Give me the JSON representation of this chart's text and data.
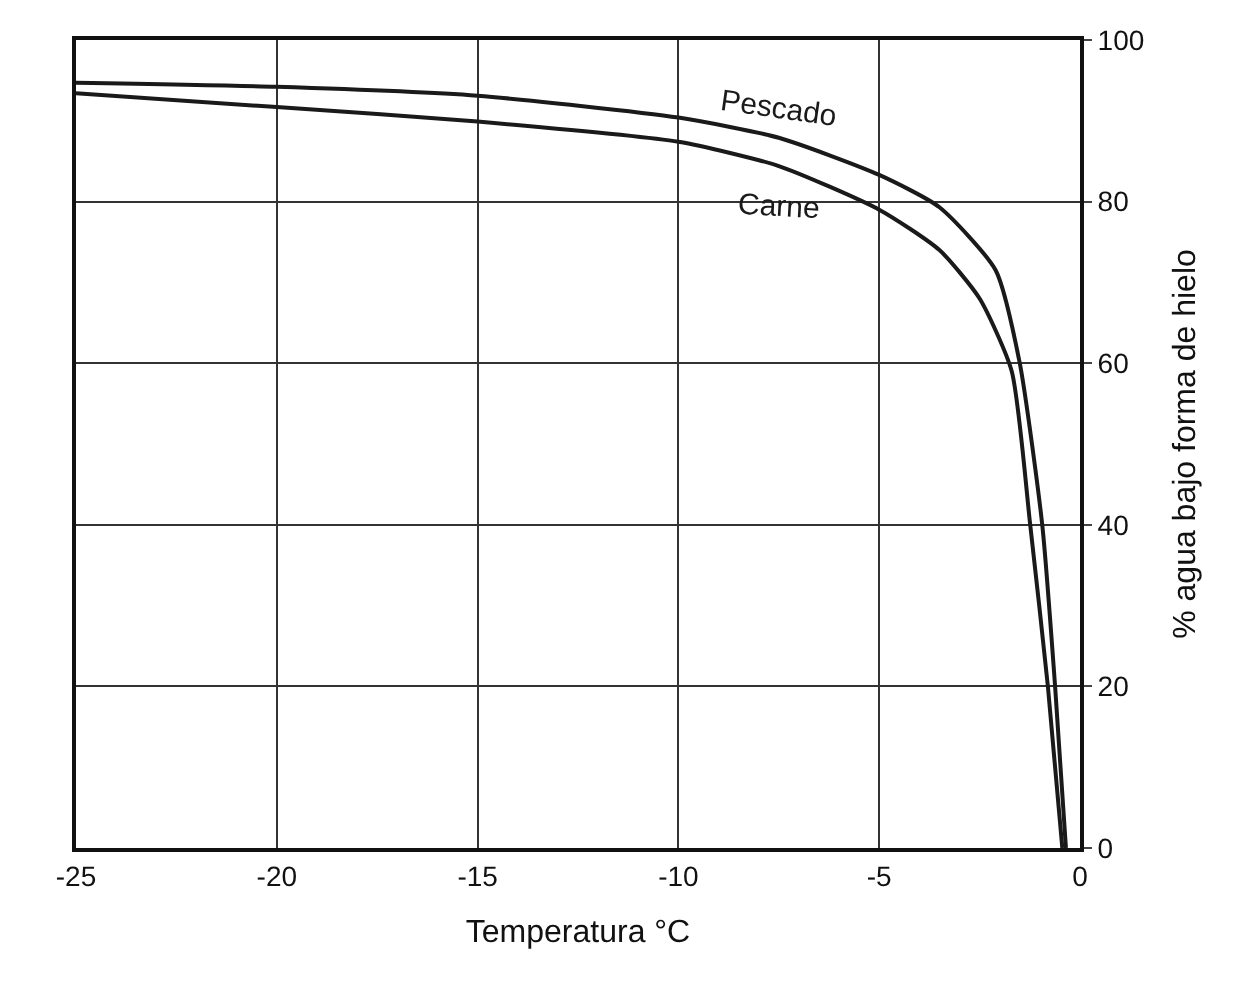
{
  "chart_data": {
    "type": "line",
    "xlabel": "Temperatura °C",
    "ylabel": "% agua bajo forma de hielo",
    "xlim": [
      -25,
      0
    ],
    "xticks": [
      -25,
      -20,
      -15,
      -10,
      -5,
      0
    ],
    "ylim": [
      0,
      100
    ],
    "yticks": [
      0,
      20,
      40,
      60,
      80,
      100
    ],
    "grid": true,
    "legend": false,
    "line_style": "solid",
    "marker": "none",
    "series": [
      {
        "name": "Pescado",
        "color": "#1a1a1a",
        "x": [
          -25,
          -20,
          -15,
          -10,
          -7.5,
          -5,
          -3.5,
          -2.1,
          -1.5,
          -0.94,
          -0.62,
          -0.35
        ],
        "values": [
          94.7,
          94.2,
          93.1,
          90.4,
          87.9,
          83.3,
          79.3,
          71.5,
          60,
          40,
          20,
          0
        ]
      },
      {
        "name": "Carne",
        "color": "#1a1a1a",
        "x": [
          -25,
          -20,
          -15,
          -10,
          -7.5,
          -5,
          -3.5,
          -2.5,
          -1.7,
          -1.24,
          -0.8,
          -0.44
        ],
        "values": [
          93.4,
          91.7,
          89.9,
          87.4,
          84.4,
          79,
          74,
          68,
          59,
          40,
          20,
          0
        ]
      }
    ]
  }
}
